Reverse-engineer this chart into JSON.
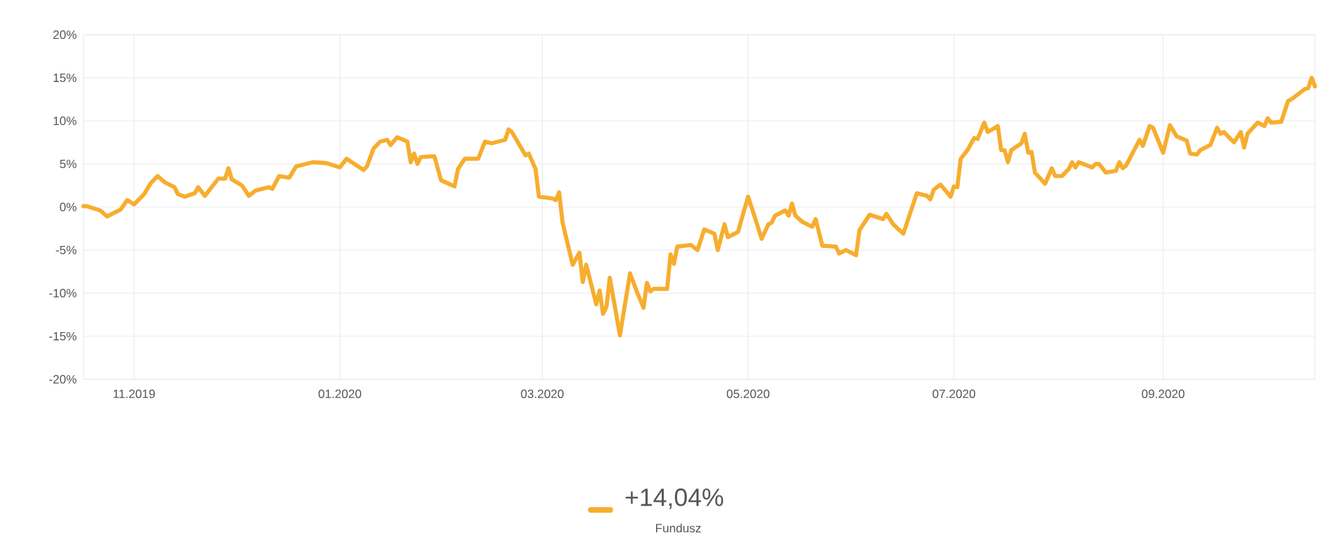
{
  "chart_data": {
    "type": "line",
    "x": [
      "2019-10-17",
      "2019-10-18",
      "2019-10-22",
      "2019-10-24",
      "2019-10-28",
      "2019-10-30",
      "2019-11-01",
      "2019-11-04",
      "2019-11-06",
      "2019-11-08",
      "2019-11-10",
      "2019-11-13",
      "2019-11-14",
      "2019-11-16",
      "2019-11-19",
      "2019-11-20",
      "2019-11-22",
      "2019-11-26",
      "2019-11-28",
      "2019-11-29",
      "2019-11-30",
      "2019-12-03",
      "2019-12-05",
      "2019-12-07",
      "2019-12-11",
      "2019-12-12",
      "2019-12-14",
      "2019-12-17",
      "2019-12-19",
      "2019-12-20",
      "2019-12-24",
      "2019-12-28",
      "2020-01-01",
      "2020-01-03",
      "2020-01-08",
      "2020-01-09",
      "2020-01-11",
      "2020-01-13",
      "2020-01-15",
      "2020-01-16",
      "2020-01-18",
      "2020-01-21",
      "2020-01-22",
      "2020-01-23",
      "2020-01-24",
      "2020-01-25",
      "2020-01-29",
      "2020-01-31",
      "2020-02-04",
      "2020-02-05",
      "2020-02-07",
      "2020-02-11",
      "2020-02-13",
      "2020-02-15",
      "2020-02-19",
      "2020-02-20",
      "2020-02-21",
      "2020-02-25",
      "2020-02-26",
      "2020-02-28",
      "2020-02-29",
      "2020-03-04",
      "2020-03-05",
      "2020-03-06",
      "2020-03-07",
      "2020-03-10",
      "2020-03-12",
      "2020-03-13",
      "2020-03-14",
      "2020-03-17",
      "2020-03-18",
      "2020-03-19",
      "2020-03-20",
      "2020-03-21",
      "2020-03-24",
      "2020-03-27",
      "2020-03-29",
      "2020-03-31",
      "2020-04-01",
      "2020-04-02",
      "2020-04-03",
      "2020-04-07",
      "2020-04-08",
      "2020-04-09",
      "2020-04-10",
      "2020-04-14",
      "2020-04-16",
      "2020-04-18",
      "2020-04-21",
      "2020-04-22",
      "2020-04-24",
      "2020-04-25",
      "2020-04-28",
      "2020-04-29",
      "2020-05-01",
      "2020-05-03",
      "2020-05-05",
      "2020-05-07",
      "2020-05-08",
      "2020-05-09",
      "2020-05-12",
      "2020-05-13",
      "2020-05-14",
      "2020-05-15",
      "2020-05-17",
      "2020-05-20",
      "2020-05-21",
      "2020-05-23",
      "2020-05-27",
      "2020-05-28",
      "2020-05-30",
      "2020-06-02",
      "2020-06-03",
      "2020-06-06",
      "2020-06-10",
      "2020-06-11",
      "2020-06-13",
      "2020-06-16",
      "2020-06-20",
      "2020-06-23",
      "2020-06-24",
      "2020-06-25",
      "2020-06-27",
      "2020-06-30",
      "2020-07-01",
      "2020-07-02",
      "2020-07-03",
      "2020-07-05",
      "2020-07-07",
      "2020-07-08",
      "2020-07-10",
      "2020-07-11",
      "2020-07-14",
      "2020-07-15",
      "2020-07-16",
      "2020-07-17",
      "2020-07-18",
      "2020-07-21",
      "2020-07-22",
      "2020-07-23",
      "2020-07-24",
      "2020-07-25",
      "2020-07-28",
      "2020-07-30",
      "2020-07-31",
      "2020-08-02",
      "2020-08-04",
      "2020-08-05",
      "2020-08-06",
      "2020-08-07",
      "2020-08-11",
      "2020-08-12",
      "2020-08-13",
      "2020-08-15",
      "2020-08-18",
      "2020-08-19",
      "2020-08-20",
      "2020-08-21",
      "2020-08-25",
      "2020-08-26",
      "2020-08-28",
      "2020-08-29",
      "2020-09-01",
      "2020-09-03",
      "2020-09-05",
      "2020-09-08",
      "2020-09-09",
      "2020-09-11",
      "2020-09-12",
      "2020-09-15",
      "2020-09-17",
      "2020-09-18",
      "2020-09-19",
      "2020-09-22",
      "2020-09-24",
      "2020-09-25",
      "2020-09-26",
      "2020-09-29",
      "2020-10-01",
      "2020-10-02",
      "2020-10-03",
      "2020-10-06",
      "2020-10-08",
      "2020-10-09",
      "2020-10-13",
      "2020-10-14",
      "2020-10-15",
      "2020-10-16"
    ],
    "series": [
      {
        "name": "Fundusz",
        "color": "#f7ad2e",
        "values": [
          0.1,
          0.1,
          -0.4,
          -1.1,
          -0.3,
          0.8,
          0.3,
          1.5,
          2.8,
          3.6,
          2.9,
          2.3,
          1.5,
          1.2,
          1.6,
          2.3,
          1.3,
          3.3,
          3.3,
          4.5,
          3.2,
          2.5,
          1.3,
          1.9,
          2.3,
          2.1,
          3.6,
          3.4,
          4.7,
          4.8,
          5.2,
          5.1,
          4.6,
          5.6,
          4.3,
          4.7,
          6.8,
          7.6,
          7.8,
          7.2,
          8.1,
          7.6,
          5.2,
          6.2,
          5.0,
          5.8,
          5.9,
          3.1,
          2.4,
          4.4,
          5.6,
          5.6,
          7.6,
          7.4,
          7.8,
          9.0,
          8.7,
          6.0,
          6.2,
          4.4,
          1.2,
          1.0,
          0.8,
          1.7,
          -1.8,
          -6.7,
          -5.3,
          -8.7,
          -6.7,
          -11.3,
          -9.7,
          -12.4,
          -11.6,
          -8.2,
          -14.9,
          -7.7,
          -9.8,
          -11.7,
          -8.8,
          -9.8,
          -9.5,
          -9.5,
          -5.5,
          -6.6,
          -4.6,
          -4.4,
          -5.0,
          -2.6,
          -3.1,
          -5.0,
          -2.0,
          -3.5,
          -2.9,
          -1.5,
          1.2,
          -1.2,
          -3.7,
          -2.0,
          -1.8,
          -1.0,
          -0.4,
          -1.0,
          0.4,
          -1.0,
          -1.7,
          -2.3,
          -1.4,
          -4.5,
          -4.6,
          -5.4,
          -5.0,
          -5.6,
          -2.7,
          -0.9,
          -1.4,
          -0.8,
          -2.0,
          -3.1,
          1.6,
          1.3,
          0.9,
          2.0,
          2.6,
          1.2,
          2.4,
          2.3,
          5.6,
          6.6,
          8.0,
          7.9,
          9.8,
          8.7,
          9.4,
          6.6,
          6.6,
          5.2,
          6.6,
          7.4,
          8.5,
          6.3,
          6.4,
          4.0,
          2.7,
          4.5,
          3.6,
          3.6,
          4.4,
          5.2,
          4.6,
          5.2,
          4.6,
          5.0,
          5.0,
          4.0,
          4.2,
          5.2,
          4.5,
          4.8,
          7.8,
          7.1,
          9.4,
          9.2,
          6.3,
          9.5,
          8.2,
          7.7,
          6.2,
          6.1,
          6.6,
          7.2,
          9.2,
          8.5,
          8.7,
          7.5,
          8.7,
          6.9,
          8.5,
          9.8,
          9.4,
          10.3,
          9.8,
          9.9,
          12.3,
          12.5,
          13.7,
          13.8,
          15.0,
          14.0
        ]
      }
    ],
    "xlim": [
      "2019-10-17",
      "2020-10-16"
    ],
    "xticks": [
      {
        "value": "2019-11-01",
        "label": "11.2019"
      },
      {
        "value": "2020-01-01",
        "label": "01.2020"
      },
      {
        "value": "2020-03-01",
        "label": "03.2020"
      },
      {
        "value": "2020-05-01",
        "label": "05.2020"
      },
      {
        "value": "2020-07-01",
        "label": "07.2020"
      },
      {
        "value": "2020-09-01",
        "label": "09.2020"
      }
    ],
    "ylim": [
      -20,
      20
    ],
    "yticks": [
      {
        "value": -20,
        "label": "-20%"
      },
      {
        "value": -15,
        "label": "-15%"
      },
      {
        "value": -10,
        "label": "-10%"
      },
      {
        "value": -5,
        "label": "-5%"
      },
      {
        "value": 0,
        "label": "0%"
      },
      {
        "value": 5,
        "label": "5%"
      },
      {
        "value": 10,
        "label": "10%"
      },
      {
        "value": 15,
        "label": "15%"
      },
      {
        "value": 20,
        "label": "20%"
      }
    ],
    "grid": true,
    "legend": "bottom",
    "annotations": [
      "+14,04%"
    ]
  }
}
